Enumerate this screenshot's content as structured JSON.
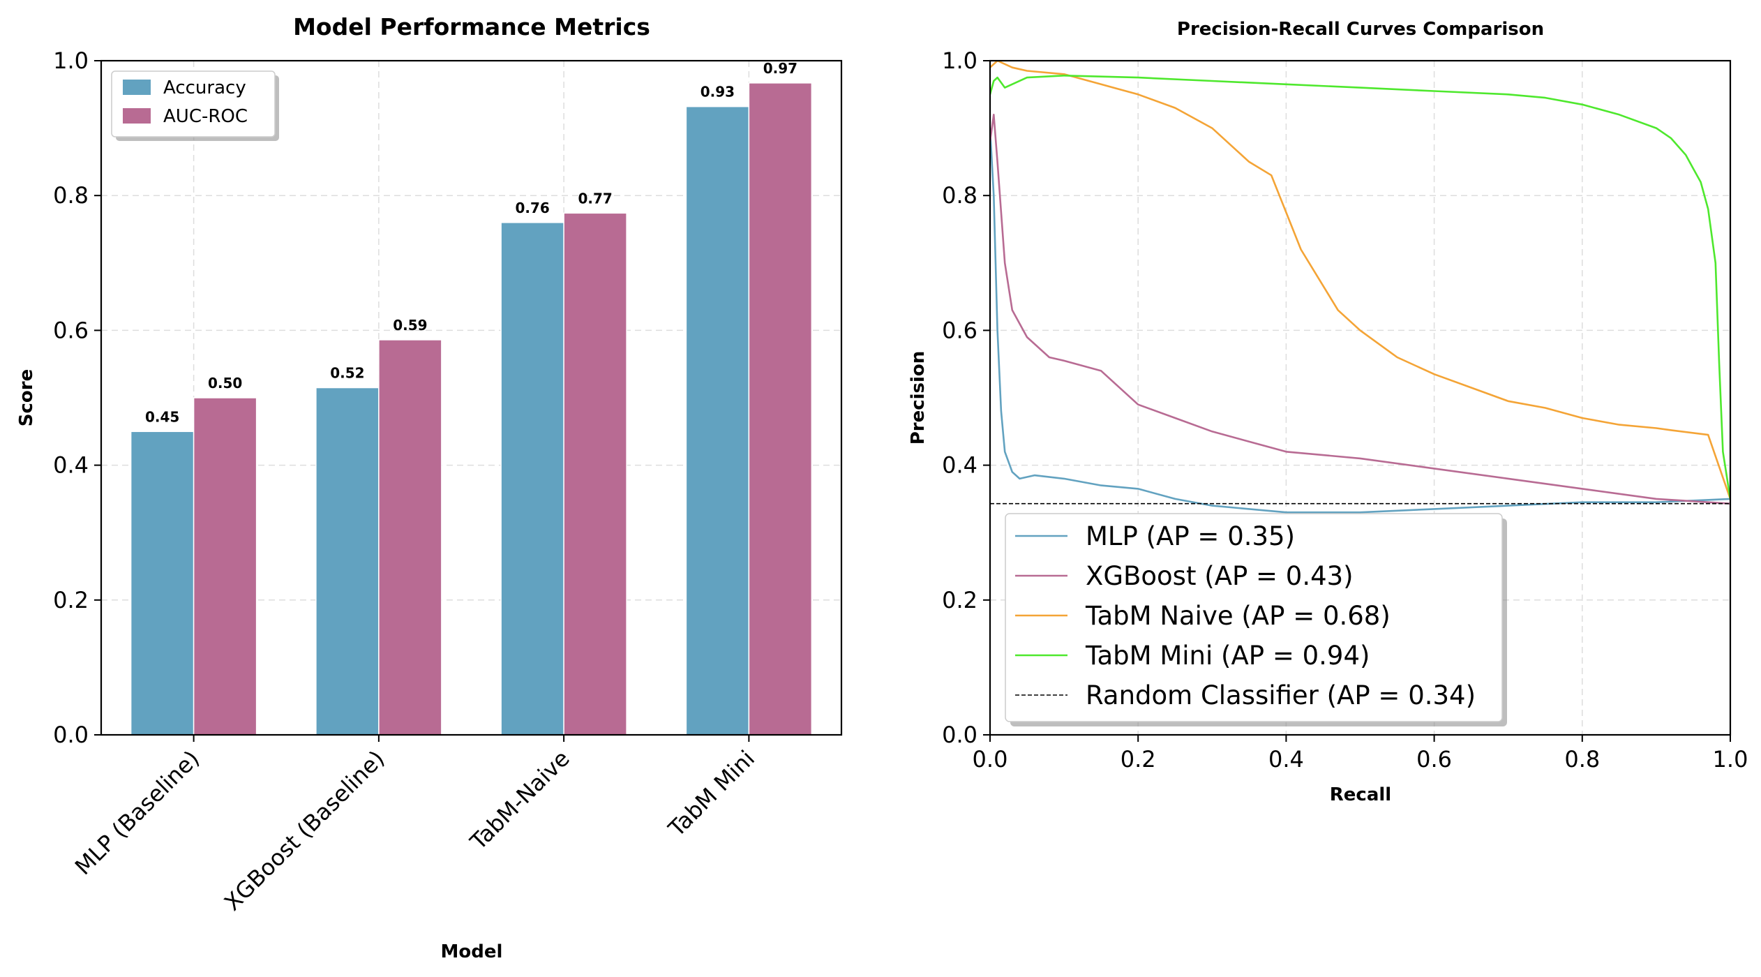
{
  "chart_data": [
    {
      "type": "bar",
      "title": "Model Performance Metrics",
      "xlabel": "Model",
      "ylabel": "Score",
      "ylim": [
        0,
        1.0
      ],
      "yticks": [
        "0.0",
        "0.2",
        "0.4",
        "0.6",
        "0.8",
        "1.0"
      ],
      "categories": [
        "MLP (Baseline)",
        "XGBoost (Baseline)",
        "TabM-Naive",
        "TabM Mini"
      ],
      "series": [
        {
          "name": "Accuracy",
          "color": "#62a2c0",
          "values": [
            0.45,
            0.515,
            0.76,
            0.932
          ],
          "labels": [
            "0.45",
            "0.52",
            "0.76",
            "0.93"
          ]
        },
        {
          "name": "AUC-ROC",
          "color": "#b86b93",
          "values": [
            0.5,
            0.586,
            0.774,
            0.967
          ],
          "labels": [
            "0.50",
            "0.59",
            "0.77",
            "0.97"
          ]
        }
      ],
      "grid": true,
      "legend_position": "upper-left"
    },
    {
      "type": "line",
      "title": "Precision-Recall Curves Comparison",
      "xlabel": "Recall",
      "ylabel": "Precision",
      "xlim": [
        0,
        1.0
      ],
      "ylim": [
        0,
        1.0
      ],
      "xticks": [
        "0.0",
        "0.2",
        "0.4",
        "0.6",
        "0.8",
        "1.0"
      ],
      "yticks": [
        "0.0",
        "0.2",
        "0.4",
        "0.6",
        "0.8",
        "1.0"
      ],
      "grid": true,
      "legend_position": "lower-left",
      "series": [
        {
          "name": "MLP (AP = 0.35)",
          "color": "#62a2c0",
          "dashed": false,
          "x": [
            0.0,
            0.005,
            0.01,
            0.015,
            0.02,
            0.03,
            0.04,
            0.06,
            0.1,
            0.15,
            0.2,
            0.25,
            0.3,
            0.4,
            0.5,
            0.6,
            0.7,
            0.8,
            0.9,
            1.0
          ],
          "y": [
            0.9,
            0.8,
            0.6,
            0.48,
            0.42,
            0.39,
            0.38,
            0.385,
            0.38,
            0.37,
            0.365,
            0.35,
            0.34,
            0.33,
            0.33,
            0.335,
            0.34,
            0.345,
            0.345,
            0.35
          ]
        },
        {
          "name": "XGBoost (AP = 0.43)",
          "color": "#b86b93",
          "dashed": false,
          "x": [
            0.0,
            0.005,
            0.01,
            0.02,
            0.03,
            0.05,
            0.08,
            0.1,
            0.15,
            0.2,
            0.25,
            0.3,
            0.4,
            0.5,
            0.6,
            0.7,
            0.8,
            0.9,
            1.0
          ],
          "y": [
            0.88,
            0.92,
            0.85,
            0.7,
            0.63,
            0.59,
            0.56,
            0.555,
            0.54,
            0.49,
            0.47,
            0.45,
            0.42,
            0.41,
            0.395,
            0.38,
            0.365,
            0.35,
            0.343
          ]
        },
        {
          "name": "TabM Naive (AP = 0.68)",
          "color": "#f4a436",
          "dashed": false,
          "x": [
            0.0,
            0.01,
            0.03,
            0.05,
            0.1,
            0.15,
            0.2,
            0.25,
            0.3,
            0.35,
            0.38,
            0.42,
            0.47,
            0.5,
            0.55,
            0.6,
            0.65,
            0.7,
            0.75,
            0.8,
            0.85,
            0.9,
            0.92,
            0.97,
            1.0
          ],
          "y": [
            0.99,
            1.0,
            0.99,
            0.985,
            0.98,
            0.965,
            0.95,
            0.93,
            0.9,
            0.85,
            0.83,
            0.72,
            0.63,
            0.6,
            0.56,
            0.535,
            0.515,
            0.495,
            0.485,
            0.47,
            0.46,
            0.455,
            0.452,
            0.445,
            0.35
          ]
        },
        {
          "name": "TabM Mini (AP = 0.94)",
          "color": "#4ee82d",
          "dashed": false,
          "x": [
            0.0,
            0.005,
            0.01,
            0.02,
            0.05,
            0.1,
            0.2,
            0.3,
            0.4,
            0.5,
            0.6,
            0.7,
            0.75,
            0.8,
            0.85,
            0.9,
            0.92,
            0.94,
            0.95,
            0.96,
            0.97,
            0.98,
            0.985,
            0.99,
            1.0
          ],
          "y": [
            0.95,
            0.97,
            0.975,
            0.96,
            0.975,
            0.978,
            0.975,
            0.97,
            0.965,
            0.96,
            0.955,
            0.95,
            0.945,
            0.935,
            0.92,
            0.9,
            0.885,
            0.86,
            0.84,
            0.82,
            0.78,
            0.7,
            0.55,
            0.42,
            0.35
          ]
        },
        {
          "name": "Random Classifier (AP = 0.34)",
          "color": "#000000",
          "dashed": true,
          "x": [
            0.0,
            1.0
          ],
          "y": [
            0.343,
            0.343
          ]
        }
      ]
    }
  ]
}
